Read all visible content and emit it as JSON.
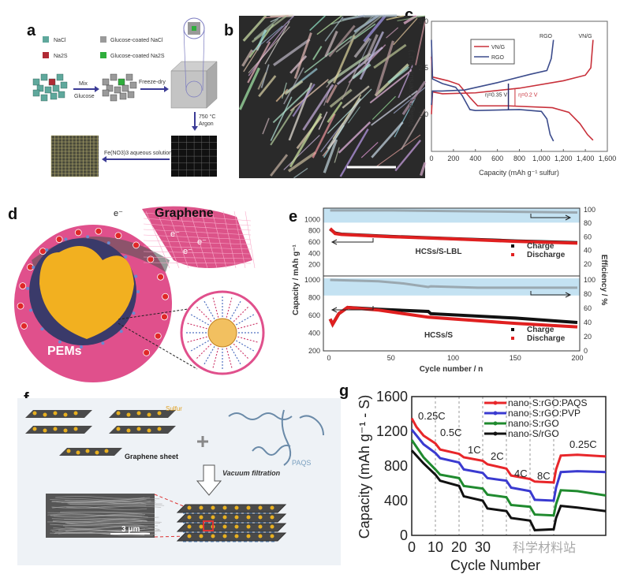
{
  "panel_labels": [
    "a",
    "b",
    "c",
    "d",
    "e",
    "f",
    "g"
  ],
  "panel_a": {
    "legend": [
      "NaCl",
      "Na2S",
      "Glucose-coated NaCl",
      "Glucose-coated Na2S"
    ],
    "mix_label": "Mix",
    "glucose_label": "Glucose",
    "freeze_dry_label": "Freeze-dry",
    "temperature_label": "750 °C",
    "argon_label": "Argon",
    "solution_label": "Fe(NO3)3 aqueous solution",
    "colors": {
      "nacl": "#5fa89c",
      "na2s": "#b02a34",
      "coated_nacl": "#9a9a9a",
      "coated_na2s": "#2fae3c",
      "arrow": "#3b3b96"
    }
  },
  "panel_d": {
    "electron_label": "e⁻",
    "graphene_label": "Graphene",
    "pems_label": "PEMs"
  },
  "panel_f": {
    "sulfur_label": "Sulfur",
    "graphene_sheet_label": "Graphene sheet",
    "paqs_label": "PAQS",
    "vacuum_label": "Vacuum filtration",
    "scale_label": "3 μm"
  },
  "watermark": "科学材料站",
  "chart_data": [
    {
      "id": "c",
      "type": "line",
      "xlabel": "Capacity (mAh g⁻¹ sulfur)",
      "ylabel": "Voltage (V versus Li/Li⁺)",
      "xlim": [
        0,
        1600
      ],
      "ylim": [
        1.6,
        3.0
      ],
      "xticks": [
        "0",
        "200",
        "400",
        "600",
        "800",
        "1,000",
        "1,200",
        "1,400",
        "1,600"
      ],
      "yticks": [
        "2.0",
        "2.5",
        "3.0"
      ],
      "legend": [
        "VN/G",
        "RGO"
      ],
      "curve_labels": [
        "RGO",
        "VN/G"
      ],
      "annotations": [
        "η=0.35 V",
        "η=0.2 V"
      ],
      "series": [
        {
          "name": "VN/G discharge",
          "color": "#c8303a",
          "points": [
            [
              0,
              2.62
            ],
            [
              10,
              2.4
            ],
            [
              150,
              2.36
            ],
            [
              250,
              2.32
            ],
            [
              350,
              2.18
            ],
            [
              420,
              2.09
            ],
            [
              700,
              2.09
            ],
            [
              1100,
              2.07
            ],
            [
              1250,
              2.02
            ],
            [
              1350,
              1.9
            ],
            [
              1420,
              1.78
            ],
            [
              1470,
              1.72
            ]
          ]
        },
        {
          "name": "VN/G charge",
          "color": "#c8303a",
          "points": [
            [
              0,
              2.0
            ],
            [
              10,
              2.24
            ],
            [
              100,
              2.22
            ],
            [
              400,
              2.23
            ],
            [
              800,
              2.28
            ],
            [
              1200,
              2.36
            ],
            [
              1400,
              2.42
            ],
            [
              1450,
              2.5
            ],
            [
              1470,
              2.8
            ]
          ]
        },
        {
          "name": "RGO discharge",
          "color": "#3c4c8c",
          "points": [
            [
              0,
              2.8
            ],
            [
              10,
              2.38
            ],
            [
              100,
              2.33
            ],
            [
              220,
              2.29
            ],
            [
              280,
              2.2
            ],
            [
              350,
              2.05
            ],
            [
              400,
              2.04
            ],
            [
              800,
              2.05
            ],
            [
              1000,
              2.03
            ],
            [
              1050,
              1.95
            ],
            [
              1080,
              1.78
            ],
            [
              1110,
              1.71
            ]
          ]
        },
        {
          "name": "RGO charge",
          "color": "#3c4c8c",
          "points": [
            [
              0,
              2.1
            ],
            [
              10,
              2.25
            ],
            [
              100,
              2.25
            ],
            [
              300,
              2.26
            ],
            [
              600,
              2.34
            ],
            [
              900,
              2.43
            ],
            [
              1050,
              2.47
            ],
            [
              1090,
              2.6
            ],
            [
              1110,
              2.8
            ]
          ]
        }
      ]
    },
    {
      "id": "e",
      "type": "scatter",
      "xlabel": "Cycle number / n",
      "ylabel": "Capacity / mAh g⁻¹",
      "ylabel_right": "Efficiency / %",
      "xlim": [
        0,
        200
      ],
      "xticks": [
        "0",
        "50",
        "100",
        "150",
        "200"
      ],
      "subplots": [
        {
          "title": "HCSs/S-LBL",
          "yticks": [
            "200",
            "400",
            "600",
            "800",
            "1000"
          ],
          "yticks_right": [
            "20",
            "40",
            "60",
            "80",
            "100"
          ],
          "ylim": [
            0,
            1200
          ],
          "series": [
            {
              "name": "Charge",
              "color": "#111111",
              "points": [
                [
                  1,
                  830
                ],
                [
                  5,
                  760
                ],
                [
                  10,
                  740
                ],
                [
                  50,
                  700
                ],
                [
                  100,
                  660
                ],
                [
                  150,
                  620
                ],
                [
                  200,
                  590
                ]
              ]
            },
            {
              "name": "Discharge",
              "color": "#e02020",
              "points": [
                [
                  1,
                  840
                ],
                [
                  5,
                  750
                ],
                [
                  10,
                  735
                ],
                [
                  50,
                  695
                ],
                [
                  100,
                  655
                ],
                [
                  150,
                  612
                ],
                [
                  200,
                  580
                ]
              ]
            },
            {
              "name": "Efficiency",
              "color": "#9aa8b0",
              "points": [
                [
                  1,
                  99
                ],
                [
                  50,
                  99
                ],
                [
                  100,
                  98
                ],
                [
                  150,
                  97
                ],
                [
                  200,
                  96
                ]
              ]
            }
          ]
        },
        {
          "title": "HCSs/S",
          "yticks": [
            "200",
            "400",
            "600",
            "800",
            "1000"
          ],
          "yticks_right": [
            "0",
            "20",
            "40",
            "60",
            "80",
            "100"
          ],
          "ylim": [
            200,
            1050
          ],
          "series": [
            {
              "name": "Charge",
              "color": "#111111",
              "points": [
                [
                  1,
                  560
                ],
                [
                  3,
                  500
                ],
                [
                  8,
                  620
                ],
                [
                  15,
                  690
                ],
                [
                  40,
                  670
                ],
                [
                  80,
                  645
                ],
                [
                  82,
                  620
                ],
                [
                  150,
                  570
                ],
                [
                  200,
                  520
                ]
              ]
            },
            {
              "name": "Discharge",
              "color": "#e02020",
              "points": [
                [
                  1,
                  560
                ],
                [
                  3,
                  500
                ],
                [
                  8,
                  620
                ],
                [
                  15,
                  690
                ],
                [
                  40,
                  660
                ],
                [
                  80,
                  580
                ],
                [
                  150,
                  510
                ],
                [
                  200,
                  470
                ]
              ]
            },
            {
              "name": "Efficiency",
              "color": "#9aa8b0",
              "points": [
                [
                  1,
                  100
                ],
                [
                  40,
                  98
                ],
                [
                  60,
                  95
                ],
                [
                  80,
                  90
                ],
                [
                  82,
                  91
                ],
                [
                  120,
                  89
                ],
                [
                  200,
                  89
                ]
              ]
            }
          ]
        }
      ],
      "legend": [
        "Charge",
        "Discharge"
      ]
    },
    {
      "id": "g",
      "type": "line",
      "xlabel": "Cycle Number",
      "ylabel": "Capacity (mAh g⁻¹ - S)",
      "xlim": [
        0,
        82
      ],
      "ylim": [
        0,
        1600
      ],
      "xticks": [
        "0",
        "10",
        "20",
        "30"
      ],
      "yticks": [
        "0",
        "400",
        "800",
        "1200",
        "1600"
      ],
      "rate_labels": [
        "0.25C",
        "0.5C",
        "1C",
        "2C",
        "4C",
        "8C",
        "0.25C"
      ],
      "rate_boundaries": [
        10,
        20,
        30,
        40,
        50,
        60
      ],
      "series": [
        {
          "name": "nano-S:rGO:PAQS",
          "color": "#e8262a",
          "points": [
            [
              0,
              1350
            ],
            [
              2,
              1250
            ],
            [
              5,
              1150
            ],
            [
              10,
              1060
            ],
            [
              12,
              990
            ],
            [
              20,
              940
            ],
            [
              22,
              900
            ],
            [
              30,
              860
            ],
            [
              32,
              820
            ],
            [
              40,
              770
            ],
            [
              42,
              690
            ],
            [
              50,
              650
            ],
            [
              52,
              620
            ],
            [
              60,
              610
            ],
            [
              61,
              760
            ],
            [
              63,
              920
            ],
            [
              70,
              930
            ],
            [
              82,
              910
            ]
          ]
        },
        {
          "name": "nano-S:rGO:PVP",
          "color": "#3a3ad0",
          "points": [
            [
              0,
              1220
            ],
            [
              5,
              1050
            ],
            [
              10,
              950
            ],
            [
              12,
              890
            ],
            [
              20,
              840
            ],
            [
              22,
              760
            ],
            [
              30,
              720
            ],
            [
              32,
              660
            ],
            [
              40,
              630
            ],
            [
              42,
              550
            ],
            [
              50,
              510
            ],
            [
              52,
              410
            ],
            [
              60,
              400
            ],
            [
              61,
              550
            ],
            [
              63,
              730
            ],
            [
              70,
              740
            ],
            [
              82,
              730
            ]
          ]
        },
        {
          "name": "nano-S:rGO",
          "color": "#1f8a2e",
          "points": [
            [
              0,
              1100
            ],
            [
              5,
              900
            ],
            [
              10,
              760
            ],
            [
              12,
              700
            ],
            [
              20,
              660
            ],
            [
              22,
              570
            ],
            [
              30,
              540
            ],
            [
              32,
              470
            ],
            [
              40,
              440
            ],
            [
              42,
              350
            ],
            [
              50,
              330
            ],
            [
              52,
              240
            ],
            [
              60,
              230
            ],
            [
              61,
              360
            ],
            [
              63,
              520
            ],
            [
              70,
              510
            ],
            [
              82,
              460
            ]
          ]
        },
        {
          "name": "nano-S/rGO",
          "color": "#111111",
          "points": [
            [
              0,
              980
            ],
            [
              5,
              830
            ],
            [
              10,
              700
            ],
            [
              12,
              630
            ],
            [
              20,
              570
            ],
            [
              22,
              450
            ],
            [
              30,
              400
            ],
            [
              32,
              310
            ],
            [
              40,
              280
            ],
            [
              42,
              200
            ],
            [
              50,
              170
            ],
            [
              52,
              60
            ],
            [
              60,
              70
            ],
            [
              61,
              200
            ],
            [
              63,
              340
            ],
            [
              70,
              320
            ],
            [
              82,
              280
            ]
          ]
        }
      ]
    }
  ]
}
